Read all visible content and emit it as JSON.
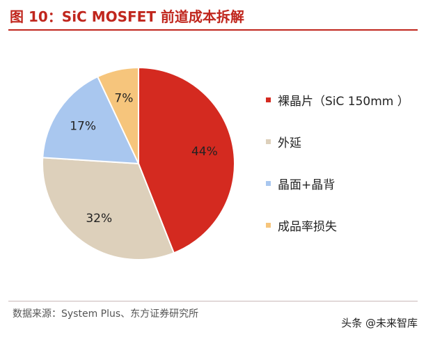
{
  "header": {
    "title": "图 10：SiC MOSFET 前道成本拆解"
  },
  "chart_data": {
    "type": "pie",
    "title": "图 10：SiC MOSFET 前道成本拆解",
    "categories": [
      "裸晶片（SiC 150mm ）",
      "外延",
      "晶面+晶背",
      "成品率损失"
    ],
    "values": [
      44,
      32,
      17,
      7
    ],
    "data_labels": [
      "44%",
      "32%",
      "17%",
      "7%"
    ],
    "colors": [
      "#d42a20",
      "#ddd0bb",
      "#a9c7ef",
      "#f6c57c"
    ],
    "legend_position": "right"
  },
  "footer": {
    "source": "数据来源：System Plus、东方证券研究所",
    "watermark": "头条 @未来智库"
  }
}
